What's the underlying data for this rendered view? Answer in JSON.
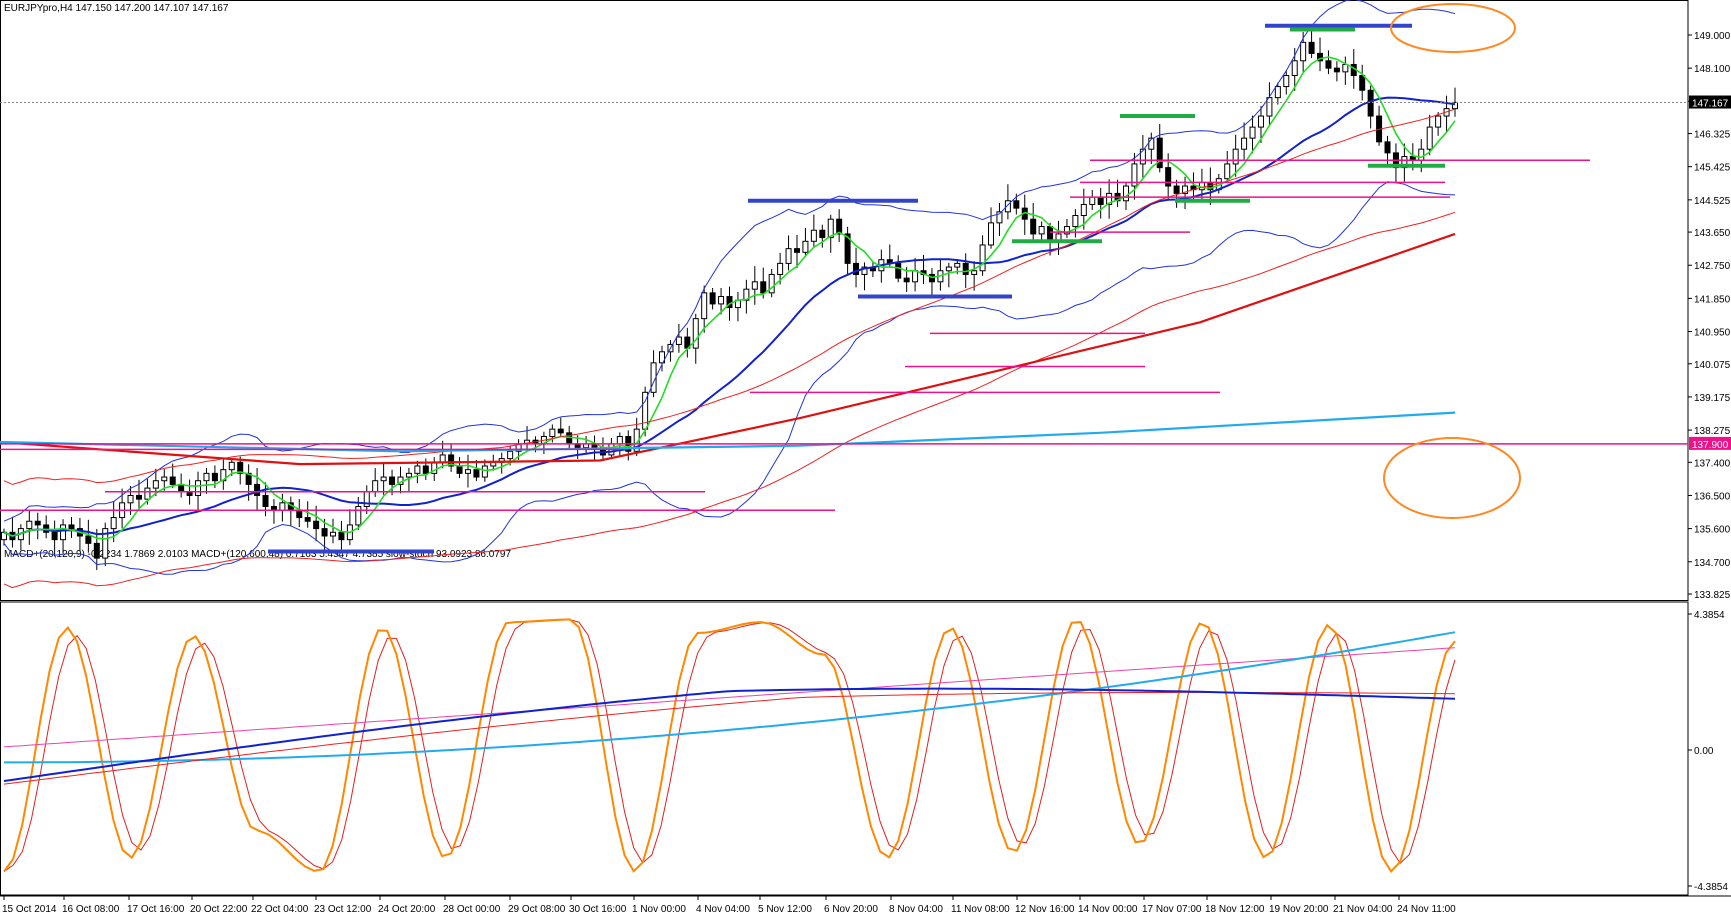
{
  "main_title": "EURJPYpro,H4  147.150 147.200 147.107 147.167",
  "indicator_title": "MACD+(20,120,9) -0.2234 1.7869 2.0103   MACD+(120,600,48) 0.7163 5.4547 4.7385   slow-stoch 93.0923 86.0797",
  "colors": {
    "background": "#ffffff",
    "grid_border": "#000000",
    "bollinger": "#2233dd",
    "envelope": "#ee2222",
    "fast_ma": "#22dd22",
    "slow_ma": "#1122cc",
    "long_ma": "#dd1111",
    "cyan_ma": "#22aaee",
    "support": "#ee1188",
    "stoch_fast": "#ff8800",
    "stoch_slow": "#dd2222",
    "macd1": "#1122cc",
    "macd1_signal": "#ee2222",
    "macd2": "#22aaee",
    "macd2_signal": "#ee44aa",
    "zone_blue": "#3344cc",
    "zone_green": "#22aa44",
    "ellipse": "#ff8822",
    "price_badge": "#000000",
    "level_badge": "#ee1188"
  },
  "chart_data": [
    {
      "type": "candlestick",
      "symbol": "EURJPYpro",
      "timeframe": "H4",
      "ohlc_last": {
        "open": 147.15,
        "high": 147.2,
        "low": 147.107,
        "close": 147.167
      },
      "ylim": [
        133.825,
        149.9
      ],
      "y_ticks": [
        "149.000",
        "148.100",
        "147.200",
        "146.325",
        "145.425",
        "144.525",
        "143.650",
        "142.750",
        "141.850",
        "140.950",
        "140.075",
        "139.175",
        "138.275",
        "137.400",
        "136.500",
        "135.600",
        "134.700",
        "133.825"
      ],
      "x_labels": [
        "15 Oct 2014",
        "16 Oct 08:00",
        "17 Oct 16:00",
        "20 Oct 22:00",
        "22 Oct 04:00",
        "23 Oct 12:00",
        "24 Oct 20:00",
        "28 Oct 00:00",
        "29 Oct 08:00",
        "30 Oct 16:00",
        "1 Nov 00:00",
        "4 Nov 04:00",
        "5 Nov 12:00",
        "6 Nov 20:00",
        "8 Nov 04:00",
        "11 Nov 08:00",
        "12 Nov 16:00",
        "14 Nov 00:00",
        "17 Nov 07:00",
        "18 Nov 12:00",
        "19 Nov 20:00",
        "21 Nov 04:00",
        "24 Nov 11:00"
      ],
      "current_price": "147.167",
      "marked_level": "137.900",
      "closes": [
        135.5,
        135.3,
        135.6,
        135.8,
        135.7,
        135.5,
        135.3,
        135.7,
        135.6,
        135.4,
        135.2,
        134.8,
        135.6,
        135.9,
        136.3,
        136.5,
        136.4,
        136.7,
        136.9,
        137.0,
        136.8,
        136.6,
        136.5,
        136.9,
        137.1,
        136.9,
        137.2,
        137.4,
        137.1,
        136.8,
        136.5,
        136.2,
        136.1,
        136.3,
        136.1,
        135.9,
        135.8,
        135.6,
        135.4,
        135.5,
        135.3,
        135.7,
        136.2,
        136.6,
        136.9,
        137.0,
        136.8,
        137.0,
        137.1,
        137.3,
        137.1,
        137.4,
        137.6,
        137.3,
        137.1,
        137.2,
        137.0,
        137.3,
        137.4,
        137.5,
        137.7,
        137.9,
        138.0,
        137.9,
        138.1,
        138.3,
        138.2,
        137.9,
        137.8,
        137.9,
        137.8,
        137.6,
        137.9,
        138.1,
        137.7,
        138.3,
        139.3,
        140.1,
        140.4,
        140.6,
        140.8,
        140.5,
        141.3,
        142.0,
        141.7,
        141.9,
        141.6,
        141.8,
        142.1,
        142.3,
        142.0,
        142.5,
        142.8,
        143.2,
        143.1,
        143.4,
        143.7,
        143.5,
        144.0,
        143.6,
        142.8,
        142.5,
        142.7,
        142.6,
        142.9,
        142.8,
        142.4,
        142.3,
        142.6,
        142.5,
        142.3,
        142.6,
        142.7,
        142.8,
        142.5,
        142.6,
        143.3,
        143.9,
        144.2,
        144.5,
        144.3,
        144.0,
        143.6,
        143.8,
        143.4,
        143.6,
        143.8,
        144.1,
        144.4,
        144.6,
        144.4,
        144.7,
        144.5,
        144.9,
        145.5,
        145.9,
        146.2,
        145.4,
        144.9,
        144.7,
        144.9,
        144.8,
        145.0,
        144.8,
        145.1,
        145.5,
        145.9,
        146.2,
        146.5,
        146.8,
        147.3,
        147.6,
        147.9,
        148.3,
        148.8,
        148.5,
        148.3,
        148.1,
        148.0,
        148.2,
        147.9,
        147.5,
        146.8,
        146.1,
        145.8,
        145.4,
        145.7,
        145.6,
        145.9,
        146.5,
        146.8,
        147.0,
        147.17
      ],
      "overlays": {
        "support_levels": [
          145.6,
          145.0,
          144.6,
          143.65,
          140.9,
          140.0,
          139.3,
          137.9,
          137.75,
          136.6,
          136.1
        ],
        "zones_blue": [
          144.5,
          141.9,
          134.98,
          149.25
        ],
        "zones_green": [
          146.8,
          144.5,
          143.4,
          145.45,
          149.15
        ]
      }
    },
    {
      "type": "line",
      "name": "MACD+ / slow-stoch",
      "ylim": [
        -4.3854,
        4.3854
      ],
      "y_ticks": [
        "4.3854",
        "0.00",
        "-4.3854"
      ],
      "series": [
        {
          "name": "slow-stoch",
          "last": 93.0923
        },
        {
          "name": "slow-stoch signal",
          "last": 86.0797
        },
        {
          "name": "MACD+(20,120,9)",
          "last": -0.2234
        },
        {
          "name": "MACD+(120,600,48)",
          "last": 0.7163
        }
      ]
    }
  ]
}
